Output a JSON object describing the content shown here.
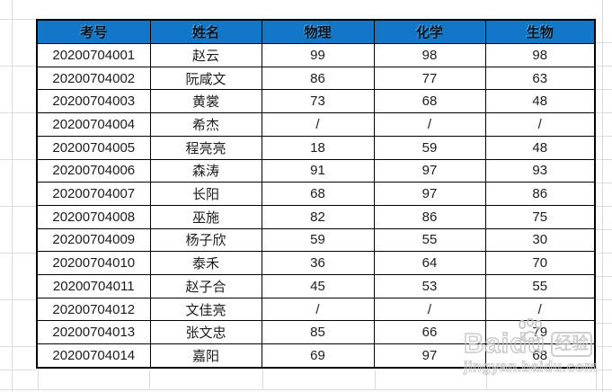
{
  "table": {
    "headers": [
      "考号",
      "姓名",
      "物理",
      "化学",
      "生物"
    ],
    "rows": [
      [
        "20200704001",
        "赵云",
        "99",
        "98",
        "98"
      ],
      [
        "20200704002",
        "阮咸文",
        "86",
        "77",
        "63"
      ],
      [
        "20200704003",
        "黄裳",
        "73",
        "68",
        "48"
      ],
      [
        "20200704004",
        "希杰",
        "/",
        "/",
        "/"
      ],
      [
        "20200704005",
        "程亮亮",
        "18",
        "59",
        "48"
      ],
      [
        "20200704006",
        "森涛",
        "91",
        "97",
        "93"
      ],
      [
        "20200704007",
        "长阳",
        "68",
        "97",
        "86"
      ],
      [
        "20200704008",
        "巫施",
        "82",
        "86",
        "75"
      ],
      [
        "20200704009",
        "杨子欣",
        "59",
        "55",
        "30"
      ],
      [
        "20200704010",
        "泰禾",
        "36",
        "64",
        "70"
      ],
      [
        "20200704011",
        "赵子合",
        "45",
        "53",
        "55"
      ],
      [
        "20200704012",
        "文佳亮",
        "/",
        "/",
        "/"
      ],
      [
        "20200704013",
        "张文忠",
        "85",
        "66",
        "79"
      ],
      [
        "20200704014",
        "嘉阳",
        "69",
        "97",
        "68"
      ]
    ]
  },
  "watermark": {
    "brand": "Baidu",
    "badge": "经验",
    "url": "jingyan.baidu.com"
  },
  "colors": {
    "header_bg": "#1377c8",
    "table_border": "#000000",
    "gridline": "#dcdcdc",
    "watermark": "#c7c7c7"
  }
}
